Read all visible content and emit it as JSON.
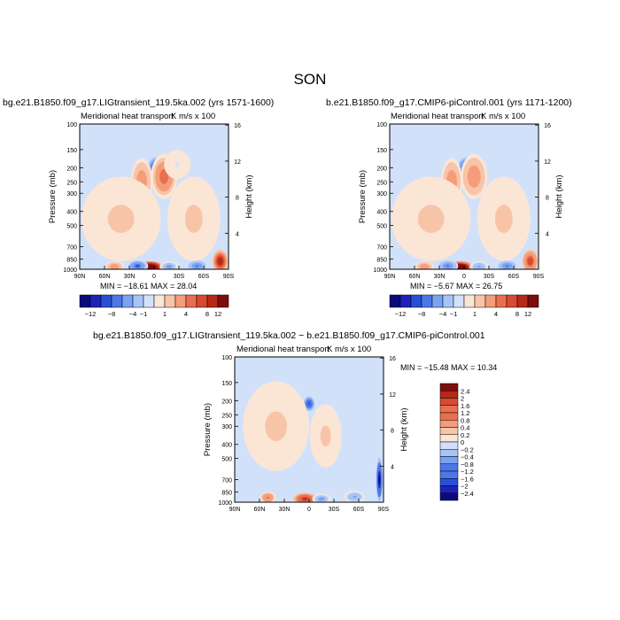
{
  "figure": {
    "title": "SON"
  },
  "colors": {
    "diverging": [
      "#0b0b7c",
      "#1e22b8",
      "#2a4fd6",
      "#4a78e8",
      "#7aa2f2",
      "#a7c4f7",
      "#d2e1fa",
      "#fbe6d6",
      "#f8c4a8",
      "#f39d7a",
      "#e96f4f",
      "#d84a32",
      "#b72817",
      "#7e0d0d"
    ]
  },
  "panels": [
    {
      "title": "bg.e21.B1850.f09_g17.LIGtransient_119.5ka.002 (yrs 1571-1600)",
      "subtitle": "Meridional heat transport",
      "units": "K m/s x 100",
      "min_max": "MIN = −18.61   MAX =  28.04"
    },
    {
      "title": "b.e21.B1850.f09_g17.CMIP6-piControl.001 (yrs 1171-1200)",
      "subtitle": "Meridional heat transport",
      "units": "K m/s x 100",
      "min_max": "MIN =  −5.67   MAX =  26.75"
    },
    {
      "title": "bg.e21.B1850.f09_g17.LIGtransient_119.5ka.002 − b.e21.B1850.f09_g17.CMIP6-piControl.001",
      "subtitle": "Meridional heat transport",
      "units": "K m/s x 100",
      "min_max": "MIN = −15.48   MAX =  10.34"
    }
  ],
  "chart_data": [
    {
      "type": "heatmap",
      "xlabel": "",
      "ylabel": "Pressure (mb)",
      "y2label": "Height (km)",
      "x_ticks": [
        "90N",
        "60N",
        "30N",
        "0",
        "30S",
        "60S",
        "90S"
      ],
      "y_ticks": [
        "100",
        "150",
        "200",
        "250",
        "300",
        "400",
        "500",
        "700",
        "850",
        "1000"
      ],
      "y_tick_values": [
        100,
        150,
        200,
        250,
        300,
        400,
        500,
        700,
        850,
        1000
      ],
      "y2_ticks": [
        "16",
        "12",
        "8",
        "4"
      ],
      "y2_tick_values": [
        16,
        12,
        8,
        4
      ],
      "colorbar": [
        "−12",
        "−8",
        "−4",
        "−1",
        "1",
        "4",
        "8",
        "12"
      ],
      "features": [
        {
          "lat": -2,
          "p": 200,
          "value": -10,
          "lat_width": 7,
          "p_width": 60
        },
        {
          "lat": -12,
          "p": 230,
          "value": 5,
          "lat_width": 10,
          "p_width": 140
        },
        {
          "lat": 15,
          "p": 250,
          "value": 4,
          "lat_width": 8,
          "p_width": 160
        },
        {
          "lat": -28,
          "p": 190,
          "value": -1,
          "lat_width": 10,
          "p_width": 70
        },
        {
          "lat": 5,
          "p": 970,
          "value": 20,
          "lat_width": 10,
          "p_width": 150
        },
        {
          "lat": 20,
          "p": 950,
          "value": -8,
          "lat_width": 8,
          "p_width": 120
        },
        {
          "lat": -18,
          "p": 960,
          "value": -5,
          "lat_width": 7,
          "p_width": 100
        },
        {
          "lat": 48,
          "p": 960,
          "value": 4,
          "lat_width": 7,
          "p_width": 90
        },
        {
          "lat": -52,
          "p": 950,
          "value": -6,
          "lat_width": 8,
          "p_width": 110
        },
        {
          "lat": -80,
          "p": 880,
          "value": 10,
          "lat_width": 6,
          "p_width": 250
        },
        {
          "lat": 40,
          "p": 450,
          "value": 1.5,
          "lat_width": 30,
          "p_width": 500
        },
        {
          "lat": -48,
          "p": 450,
          "value": 1.5,
          "lat_width": 20,
          "p_width": 500
        }
      ]
    },
    {
      "type": "heatmap",
      "xlabel": "",
      "ylabel": "Pressure (mb)",
      "y2label": "Height (km)",
      "x_ticks": [
        "90N",
        "60N",
        "30N",
        "0",
        "30S",
        "60S",
        "90S"
      ],
      "y_ticks": [
        "100",
        "150",
        "200",
        "250",
        "300",
        "400",
        "500",
        "700",
        "850",
        "1000"
      ],
      "y_tick_values": [
        100,
        150,
        200,
        250,
        300,
        400,
        500,
        700,
        850,
        1000
      ],
      "y2_ticks": [
        "16",
        "12",
        "8",
        "4"
      ],
      "y2_tick_values": [
        16,
        12,
        8,
        4
      ],
      "colorbar": [
        "−12",
        "−8",
        "−4",
        "−1",
        "1",
        "4",
        "8",
        "12"
      ],
      "features": [
        {
          "lat": -2,
          "p": 200,
          "value": -8,
          "lat_width": 7,
          "p_width": 60
        },
        {
          "lat": -12,
          "p": 230,
          "value": 4,
          "lat_width": 10,
          "p_width": 140
        },
        {
          "lat": 15,
          "p": 250,
          "value": 4,
          "lat_width": 8,
          "p_width": 160
        },
        {
          "lat": 5,
          "p": 970,
          "value": 18,
          "lat_width": 10,
          "p_width": 150
        },
        {
          "lat": 20,
          "p": 950,
          "value": -6,
          "lat_width": 8,
          "p_width": 120
        },
        {
          "lat": -18,
          "p": 960,
          "value": -4,
          "lat_width": 7,
          "p_width": 100
        },
        {
          "lat": 48,
          "p": 960,
          "value": 4,
          "lat_width": 7,
          "p_width": 90
        },
        {
          "lat": -52,
          "p": 950,
          "value": -6,
          "lat_width": 8,
          "p_width": 110
        },
        {
          "lat": -80,
          "p": 880,
          "value": 8,
          "lat_width": 6,
          "p_width": 250
        },
        {
          "lat": 40,
          "p": 450,
          "value": 1.5,
          "lat_width": 30,
          "p_width": 500
        },
        {
          "lat": -48,
          "p": 450,
          "value": 1.5,
          "lat_width": 20,
          "p_width": 500
        }
      ]
    },
    {
      "type": "heatmap",
      "xlabel": "",
      "ylabel": "Pressure (mb)",
      "y2label": "Height (km)",
      "x_ticks": [
        "90N",
        "60N",
        "30N",
        "0",
        "30S",
        "60S",
        "90S"
      ],
      "y_ticks": [
        "100",
        "150",
        "200",
        "250",
        "300",
        "400",
        "500",
        "700",
        "850",
        "1000"
      ],
      "y_tick_values": [
        100,
        150,
        200,
        250,
        300,
        400,
        500,
        700,
        850,
        1000
      ],
      "y2_ticks": [
        "16",
        "12",
        "8",
        "4"
      ],
      "y2_tick_values": [
        16,
        12,
        8,
        4
      ],
      "colorbar": [
        "2.4",
        "2",
        "1.6",
        "1.2",
        "0.8",
        "0.4",
        "0.2",
        "0",
        "−0.2",
        "−0.4",
        "−0.8",
        "−1.2",
        "−1.6",
        "−2",
        "−2.4"
      ],
      "features": [
        {
          "lat": 0,
          "p": 210,
          "value": -1.8,
          "lat_width": 5,
          "p_width": 40
        },
        {
          "lat": 40,
          "p": 300,
          "value": 0.3,
          "lat_width": 25,
          "p_width": 350
        },
        {
          "lat": -20,
          "p": 350,
          "value": 0.3,
          "lat_width": 12,
          "p_width": 300
        },
        {
          "lat": 5,
          "p": 950,
          "value": 1.6,
          "lat_width": 9,
          "p_width": 120
        },
        {
          "lat": -15,
          "p": 950,
          "value": -1,
          "lat_width": 7,
          "p_width": 80
        },
        {
          "lat": 50,
          "p": 930,
          "value": 0.8,
          "lat_width": 6,
          "p_width": 100
        },
        {
          "lat": -55,
          "p": 920,
          "value": -0.8,
          "lat_width": 8,
          "p_width": 100
        },
        {
          "lat": -85,
          "p": 700,
          "value": -2.4,
          "lat_width": 3,
          "p_width": 500
        }
      ]
    }
  ]
}
